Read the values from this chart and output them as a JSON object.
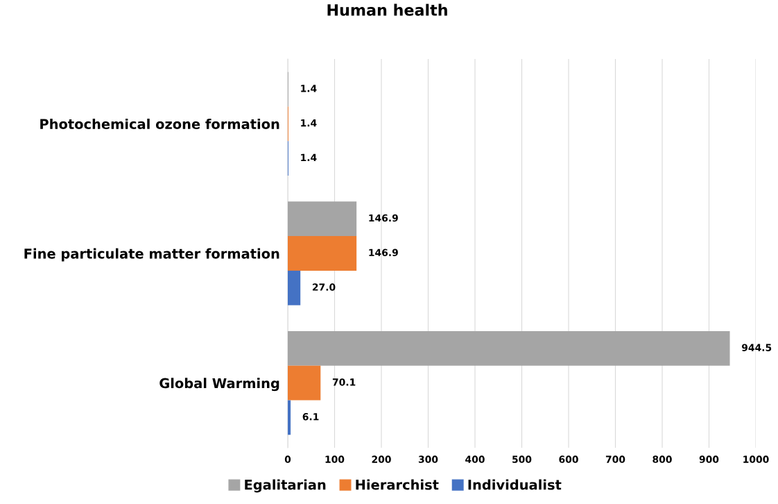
{
  "chart_data": {
    "type": "bar",
    "orientation": "horizontal",
    "title": "Human health",
    "categories": [
      "Photochemical ozone formation",
      "Fine particulate matter formation",
      "Global Warming"
    ],
    "series": [
      {
        "name": "Egalitarian",
        "color": "#a5a5a5",
        "values": [
          1.4,
          146.9,
          944.5
        ],
        "value_labels": [
          "1.4",
          "146.9",
          "944.5"
        ]
      },
      {
        "name": "Hierarchist",
        "color": "#ed7d31",
        "values": [
          1.4,
          146.9,
          70.1
        ],
        "value_labels": [
          "1.4",
          "146.9",
          "70.1"
        ]
      },
      {
        "name": "Individualist",
        "color": "#4472c4",
        "values": [
          1.4,
          27.0,
          6.1
        ],
        "value_labels": [
          "1.4",
          "27.0",
          "6.1"
        ]
      }
    ],
    "xlim": [
      0,
      1000
    ],
    "xticks": [
      0,
      100,
      200,
      300,
      400,
      500,
      600,
      700,
      800,
      900,
      1000
    ],
    "grid": "x",
    "legend": "bottom"
  }
}
